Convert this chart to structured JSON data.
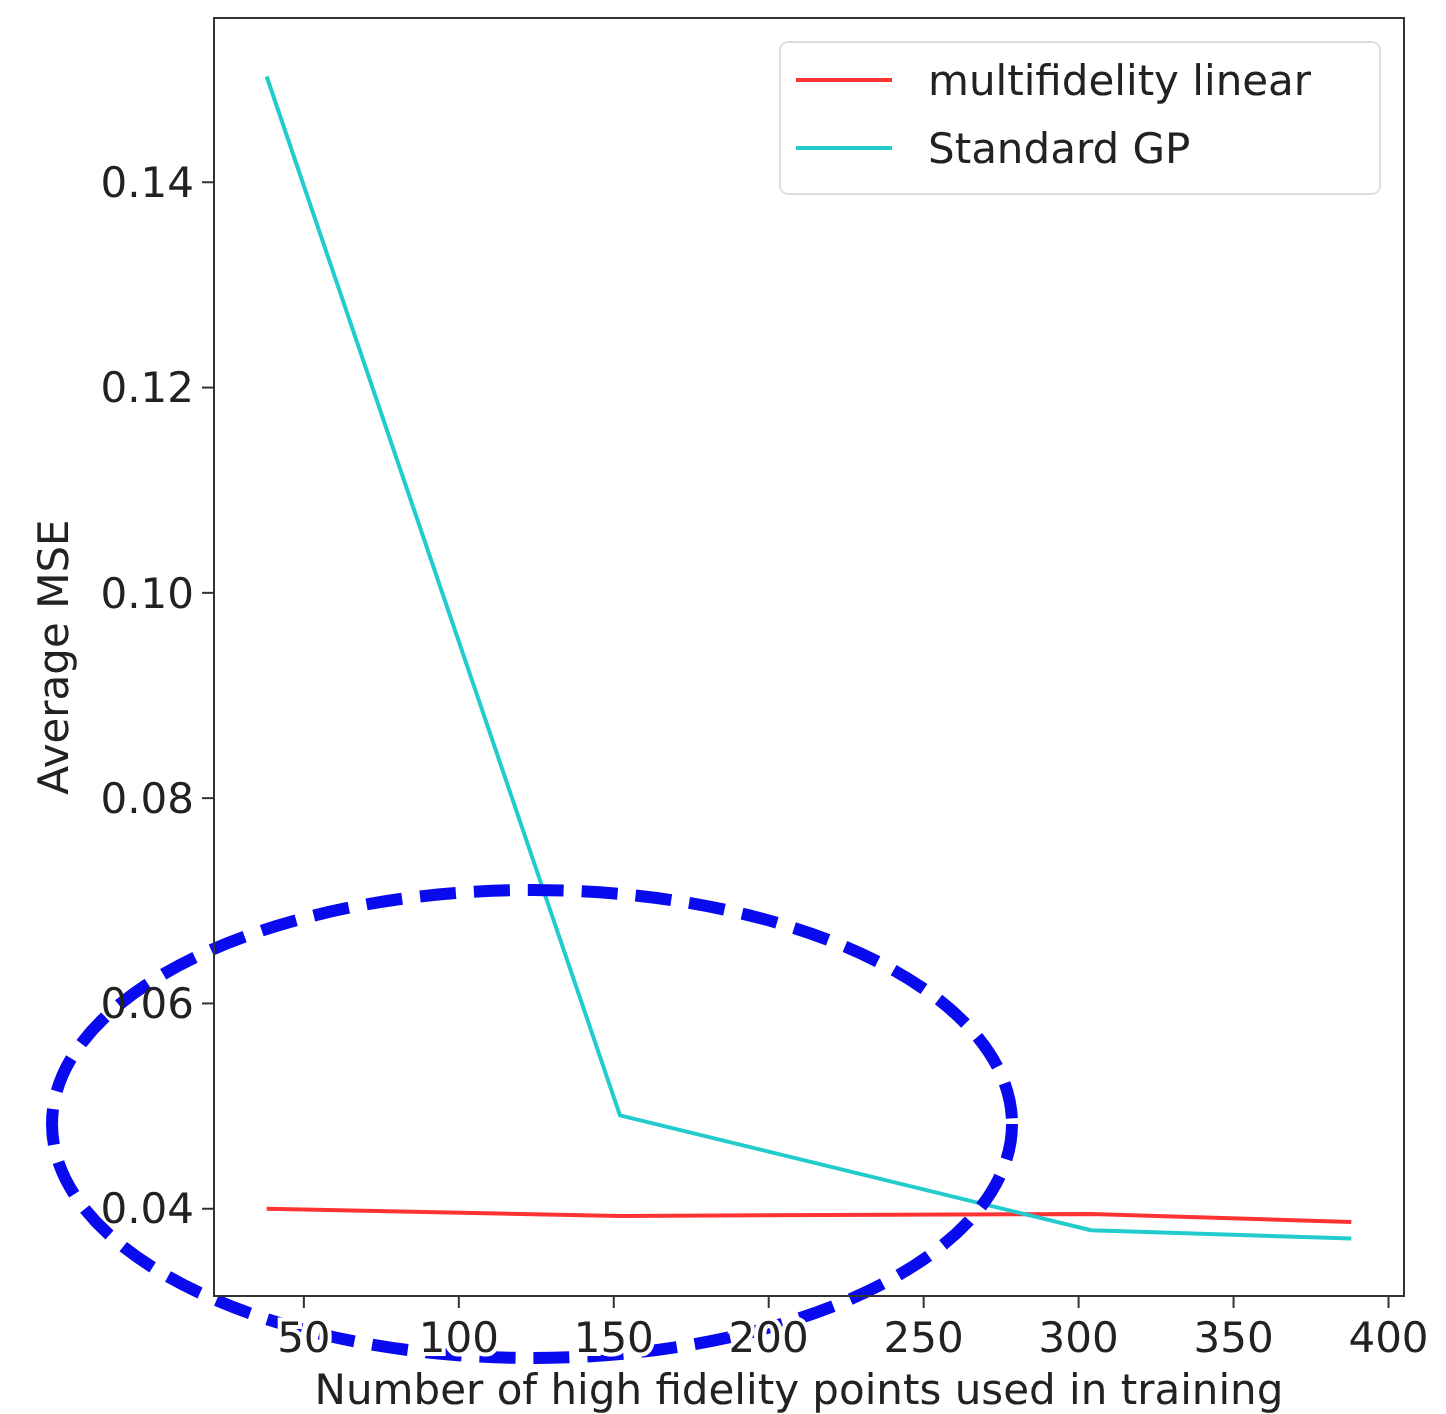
{
  "chart_data": {
    "type": "line",
    "xlabel": "Number of high fidelity points used in training",
    "ylabel": "Average MSE",
    "x": [
      38,
      152,
      304,
      388
    ],
    "series": [
      {
        "name": "multifidelity linear",
        "color": "#ff3333",
        "values": [
          0.04,
          0.0393,
          0.0395,
          0.0387
        ]
      },
      {
        "name": "Standard GP",
        "color": "#22cccc",
        "values": [
          0.1503,
          0.0491,
          0.0379,
          0.0371
        ]
      }
    ],
    "xlim": [
      21,
      405
    ],
    "xticks": [
      50,
      100,
      150,
      200,
      250,
      300,
      350,
      400
    ],
    "ylim": [
      0.0315,
      0.156
    ],
    "yticks": [
      {
        "value": 0.04,
        "label": "0.04"
      },
      {
        "value": 0.06,
        "label": "0.06"
      },
      {
        "value": 0.08,
        "label": "0.08"
      },
      {
        "value": 0.1,
        "label": "0.10"
      },
      {
        "value": 0.12,
        "label": "0.12"
      },
      {
        "value": 0.14,
        "label": "0.14"
      }
    ],
    "grid": false,
    "legend": "top right",
    "marker": "none",
    "line_style": "solid"
  }
}
